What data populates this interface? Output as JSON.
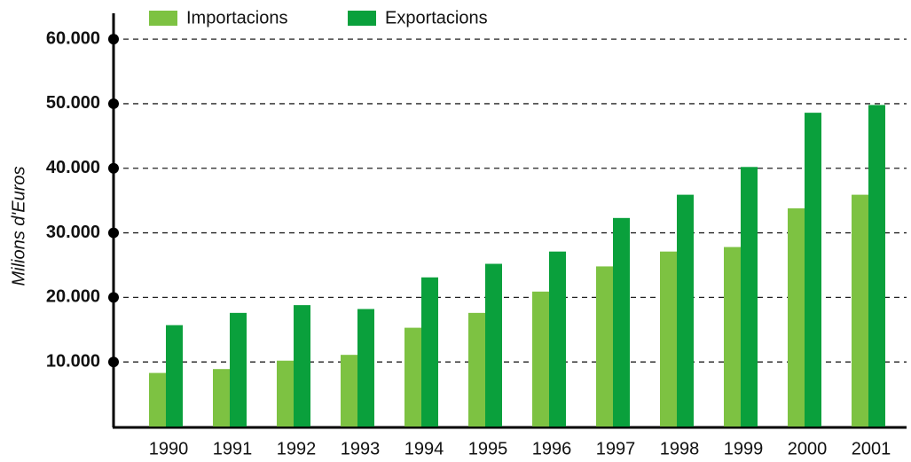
{
  "chart_data": {
    "type": "bar",
    "y_label": "Milions d'Euros",
    "categories": [
      "1990",
      "1991",
      "1992",
      "1993",
      "1994",
      "1995",
      "1996",
      "1997",
      "1998",
      "1999",
      "2000",
      "2001"
    ],
    "series": [
      {
        "name": "Importacions",
        "color": "#7dc242",
        "values": [
          8300,
          8900,
          10200,
          11100,
          15300,
          17600,
          20900,
          24800,
          27100,
          27800,
          33800,
          35900
        ]
      },
      {
        "name": "Exportacions",
        "color": "#0aa03c",
        "values": [
          15700,
          17600,
          18800,
          18200,
          23100,
          25200,
          27100,
          32300,
          35900,
          40200,
          48600,
          49800
        ]
      }
    ],
    "ylim": [
      0,
      64000
    ],
    "yticks": [
      {
        "value": 10000,
        "label": "10.000"
      },
      {
        "value": 20000,
        "label": "20.000"
      },
      {
        "value": 30000,
        "label": "30.000"
      },
      {
        "value": 40000,
        "label": "40.000"
      },
      {
        "value": 50000,
        "label": "50.000"
      },
      {
        "value": 60000,
        "label": "60.000"
      }
    ],
    "grid": true
  }
}
